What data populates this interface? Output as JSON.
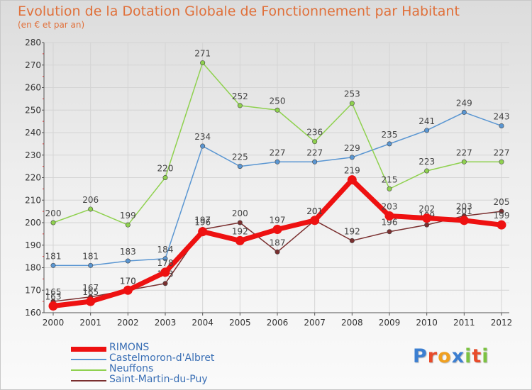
{
  "header": {
    "title": "Evolution de la Dotation Globale de Fonctionnement par Habitant",
    "subtitle": "(en € et par an)"
  },
  "logo": {
    "text": "Proxiti",
    "letter_colors": [
      "#3c7fd1",
      "#e84b2a",
      "#f0a020",
      "#3c7fd1",
      "#7cc242",
      "#e84b2a",
      "#7cc242"
    ]
  },
  "chart_data": {
    "type": "line",
    "x": [
      "2000",
      "2001",
      "2002",
      "2003",
      "2004",
      "2005",
      "2006",
      "2007",
      "2008",
      "2009",
      "2010",
      "2011",
      "2012"
    ],
    "ylim": [
      160,
      280
    ],
    "yticks": [
      "160",
      "170",
      "180",
      "190",
      "200",
      "210",
      "220",
      "230",
      "240",
      "250",
      "260",
      "270",
      "280"
    ],
    "grid": true,
    "legend_position": "bottom-left",
    "series": [
      {
        "name": "Castelmoron-d'Albret",
        "color": "#5a96d2",
        "values": [
          181,
          181,
          183,
          184,
          234,
          225,
          227,
          227,
          229,
          235,
          241,
          249,
          243
        ],
        "labels": [
          "181",
          "181",
          "183",
          "184",
          "234",
          "225",
          "227",
          "227",
          "229",
          "235",
          "241",
          "249",
          "243"
        ]
      },
      {
        "name": "Neuffons",
        "color": "#8fd14f",
        "values": [
          200,
          206,
          199,
          220,
          271,
          252,
          250,
          236,
          253,
          215,
          223,
          227,
          227
        ],
        "labels": [
          "200",
          "206",
          "199",
          "220",
          "271",
          "252",
          "250",
          "236",
          "253",
          "215",
          "223",
          "227",
          "227"
        ]
      },
      {
        "name": "Saint-Martin-du-Puy",
        "color": "#7a2f2f",
        "values": [
          165,
          167,
          170,
          173,
          197,
          200,
          187,
          201,
          192,
          196,
          199,
          203,
          205
        ],
        "labels": [
          "165",
          "167",
          "170",
          "173",
          "197",
          "200",
          "187",
          "201",
          "192",
          "196",
          "199",
          "203",
          "205"
        ]
      },
      {
        "name": "RIMONS",
        "color": "#ee1111",
        "values": [
          163,
          165,
          170,
          178,
          196,
          192,
          197,
          201,
          219,
          203,
          202,
          201,
          199
        ],
        "labels": [
          "163",
          "165",
          "170",
          "178",
          "196",
          "192",
          "197",
          "201",
          "219",
          "203",
          "202",
          "201",
          "199"
        ]
      }
    ]
  },
  "legend": [
    {
      "label": "RIMONS",
      "color": "#ee1111",
      "thickness": 7
    },
    {
      "label": "Castelmoron-d'Albret",
      "color": "#5a96d2",
      "thickness": 2
    },
    {
      "label": "Neuffons",
      "color": "#8fd14f",
      "thickness": 2
    },
    {
      "label": "Saint-Martin-du-Puy",
      "color": "#7a2f2f",
      "thickness": 2
    }
  ]
}
